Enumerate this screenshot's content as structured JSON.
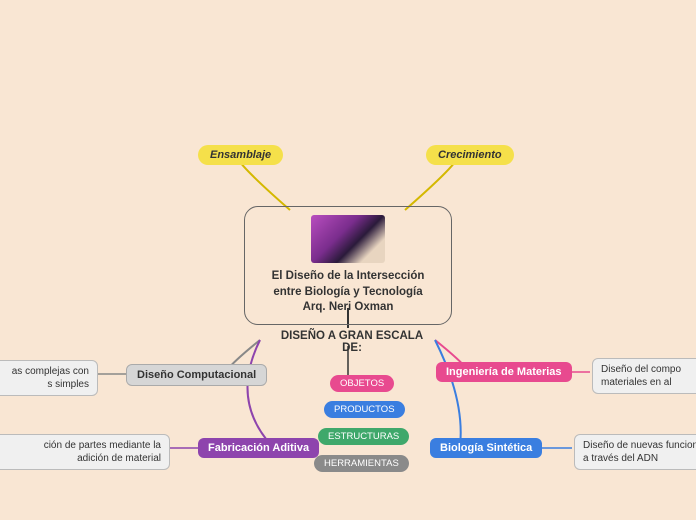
{
  "central": {
    "line1": "El Diseño de la Intersección",
    "line2": "entre Biología y Tecnología",
    "line3": "Arq. Neri Oxman"
  },
  "topLeft": {
    "label": "Ensamblaje",
    "color": "#f5e04a"
  },
  "topRight": {
    "label": "Crecimiento",
    "color": "#f5e04a"
  },
  "subhead": "DISEÑO A GRAN ESCALA DE:",
  "badges": [
    {
      "label": "OBJETOS",
      "bg": "#e84a8f"
    },
    {
      "label": "PRODUCTOS",
      "bg": "#3a7ee0"
    },
    {
      "label": "ESTRUCTURAS",
      "bg": "#3fa86b"
    },
    {
      "label": "HERRAMIENTAS",
      "bg": "#8a8a8a"
    }
  ],
  "leftMid": {
    "label": "Diseño Computacional",
    "desc": "as complejas con\ns simples"
  },
  "leftLow": {
    "label": "Fabricación Aditiva",
    "desc": "ción de partes mediante la\nadición de material"
  },
  "rightMid": {
    "label": "Ingeniería de Materias",
    "desc": "Diseño del compo\nmateriales en al"
  },
  "rightLow": {
    "label": "Biología Sintética",
    "desc": "Diseño de nuevas funcional\na través del ADN"
  },
  "conn": {
    "yellow": "#d4b800",
    "gray": "#888888",
    "purple": "#8e44ad",
    "pink": "#e84a8f",
    "blue": "#3a7ee0",
    "dark": "#333333"
  }
}
